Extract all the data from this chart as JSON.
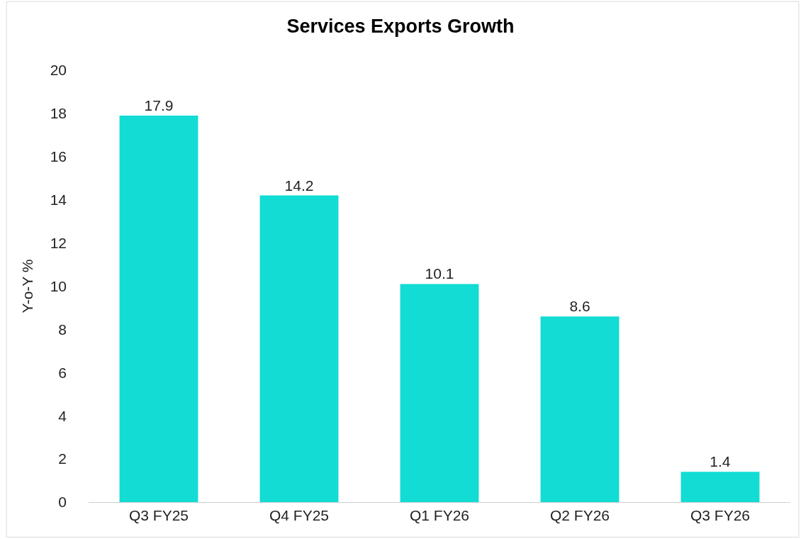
{
  "chart_data": {
    "type": "bar",
    "title": "Services Exports Growth",
    "ylabel": "Y-o-Y %",
    "categories": [
      "Q3 FY25",
      "Q4 FY25",
      "Q1 FY26",
      "Q2 FY26",
      "Q3 FY26"
    ],
    "values": [
      17.9,
      14.2,
      10.1,
      8.6,
      1.4
    ],
    "color": "#12dcd4",
    "ylim": [
      0,
      20
    ],
    "yticks": [
      0,
      2,
      4,
      6,
      8,
      10,
      12,
      14,
      16,
      18,
      20
    ],
    "grid": false,
    "data_labels": true
  }
}
